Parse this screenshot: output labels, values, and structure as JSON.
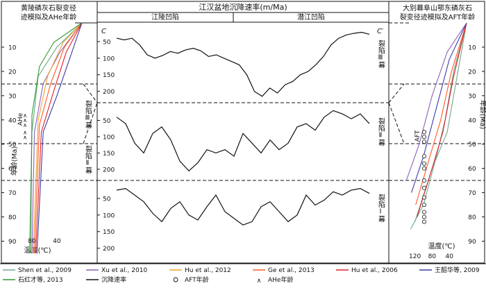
{
  "header": {
    "center_title": "江汉盆地沉降速率(m/Ma)",
    "sub_left": "江陵凹陷",
    "sub_right": "潜江凹陷",
    "left_title_line1": "黄陵磷灰石裂变径",
    "left_title_line2": "迹模拟及AHe年龄",
    "right_title_line1": "大别幕阜山鄂东磷灰石",
    "right_title_line2": "裂变径迹模拟及AFT年龄"
  },
  "labels": {
    "c_left": "C",
    "c_right": "C′",
    "left_ylabel": "年龄(Ma)",
    "right_ylabel": "年龄(Ma)",
    "left_xlabel": "温度(℃)",
    "right_xlabel": "温度(℃)",
    "ahe": "AHe",
    "aft": "AFT",
    "phase3": "裂陷Ⅲ幕",
    "phase2": "裂陷Ⅱ幕",
    "phase1": "裂陷Ⅰ幕"
  },
  "axes": {
    "age_ticks": [
      "10",
      "20",
      "30",
      "40",
      "50",
      "60",
      "70",
      "80",
      "90"
    ],
    "subsidence_ticks": [
      "50",
      "100",
      "150",
      "200"
    ],
    "left_temp_ticks": [
      "80",
      "40"
    ],
    "right_temp_ticks": [
      "120",
      "80",
      "40"
    ]
  },
  "legend": [
    {
      "text": "Shen et al., 2009",
      "color": "#6fa88a",
      "marker": "line"
    },
    {
      "text": "Xu et al., 2010",
      "color": "#8a63b8",
      "marker": "line"
    },
    {
      "text": "Hu et al., 2012",
      "color": "#f0a030",
      "marker": "line"
    },
    {
      "text": "Ge et al., 2013",
      "color": "#ff5a2a",
      "marker": "line"
    },
    {
      "text": "Hu et al., 2006",
      "color": "#e0202a",
      "marker": "line"
    },
    {
      "text": "王韶华等, 2009",
      "color": "#3a3aa8",
      "marker": "line"
    },
    {
      "text": "石红才等, 2013",
      "color": "#2e9a2e",
      "marker": "line"
    },
    {
      "text": "沉降速率",
      "color": "#111111",
      "marker": "line"
    },
    {
      "text": "AFT年龄",
      "color": "#111111",
      "marker": "circle"
    },
    {
      "text": "AHe年龄",
      "color": "#111111",
      "marker": "caret"
    }
  ],
  "chart_data": {
    "type": "line",
    "panels": [
      {
        "phase": "裂陷Ⅲ幕",
        "ylim": [
          0,
          230
        ],
        "profile": [
          40,
          45,
          40,
          60,
          90,
          100,
          92,
          80,
          85,
          75,
          70,
          78,
          95,
          90,
          100,
          110,
          120,
          150,
          200,
          215,
          190,
          205,
          180,
          170,
          150,
          140,
          120,
          95,
          60,
          40,
          30,
          25,
          22,
          28
        ]
      },
      {
        "phase": "裂陷Ⅱ幕",
        "ylim": [
          0,
          230
        ],
        "profile": [
          40,
          60,
          120,
          150,
          90,
          70,
          110,
          175,
          205,
          180,
          140,
          150,
          140,
          160,
          90,
          120,
          150,
          110,
          140,
          120,
          70,
          60,
          80,
          40,
          20,
          30,
          45,
          30,
          60
        ]
      },
      {
        "phase": "裂陷Ⅰ幕",
        "ylim": [
          0,
          230
        ],
        "profile": [
          25,
          20,
          40,
          60,
          95,
          120,
          80,
          60,
          100,
          115,
          75,
          40,
          90,
          110,
          130,
          120,
          75,
          60,
          90,
          120,
          100,
          40,
          70,
          55,
          30,
          40,
          25,
          20,
          35
        ]
      }
    ],
    "left_models": {
      "x_axis": "温度(℃)",
      "y_axis": "年龄(Ma)",
      "xlim": [
        100,
        0
      ],
      "ylim": [
        0,
        95
      ]
    },
    "right_models": {
      "x_axis": "温度(℃)",
      "y_axis": "年龄(Ma)",
      "xlim": [
        150,
        0
      ],
      "ylim": [
        0,
        95
      ]
    }
  }
}
